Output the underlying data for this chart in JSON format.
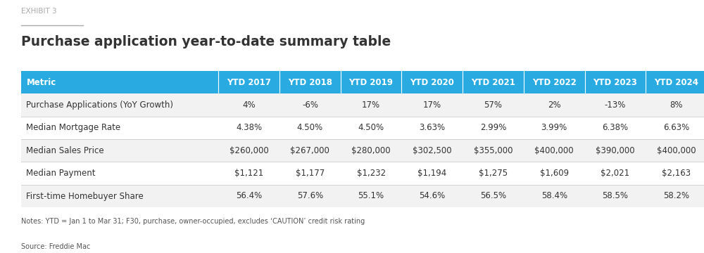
{
  "exhibit_label": "EXHIBIT 3",
  "title": "Purchase application year-to-date summary table",
  "header": [
    "Metric",
    "YTD 2017",
    "YTD 2018",
    "YTD 2019",
    "YTD 2020",
    "YTD 2021",
    "YTD 2022",
    "YTD 2023",
    "YTD 2024"
  ],
  "rows": [
    [
      "Purchase Applications (YoY Growth)",
      "4%",
      "-6%",
      "17%",
      "17%",
      "57%",
      "2%",
      "-13%",
      "8%"
    ],
    [
      "Median Mortgage Rate",
      "4.38%",
      "4.50%",
      "4.50%",
      "3.63%",
      "2.99%",
      "3.99%",
      "6.38%",
      "6.63%"
    ],
    [
      "Median Sales Price",
      "$260,000",
      "$267,000",
      "$280,000",
      "$302,500",
      "$355,000",
      "$400,000",
      "$390,000",
      "$400,000"
    ],
    [
      "Median Payment",
      "$1,121",
      "$1,177",
      "$1,232",
      "$1,194",
      "$1,275",
      "$1,609",
      "$2,021",
      "$2,163"
    ],
    [
      "First-time Homebuyer Share",
      "56.4%",
      "57.6%",
      "55.1%",
      "54.6%",
      "56.5%",
      "58.4%",
      "58.5%",
      "58.2%"
    ]
  ],
  "notes": "Notes: YTD = Jan 1 to Mar 31; F30, purchase, owner-occupied, excludes ‘CAUTION’ credit risk rating",
  "source": "Source: Freddie Mac",
  "header_bg_color": "#29ABE2",
  "header_text_color": "#FFFFFF",
  "row_bg_color_odd": "#F2F2F2",
  "row_bg_color_even": "#FFFFFF",
  "cell_text_color": "#333333",
  "border_color": "#CCCCCC",
  "background_color": "#FFFFFF",
  "exhibit_color": "#AAAAAA",
  "title_color": "#333333"
}
